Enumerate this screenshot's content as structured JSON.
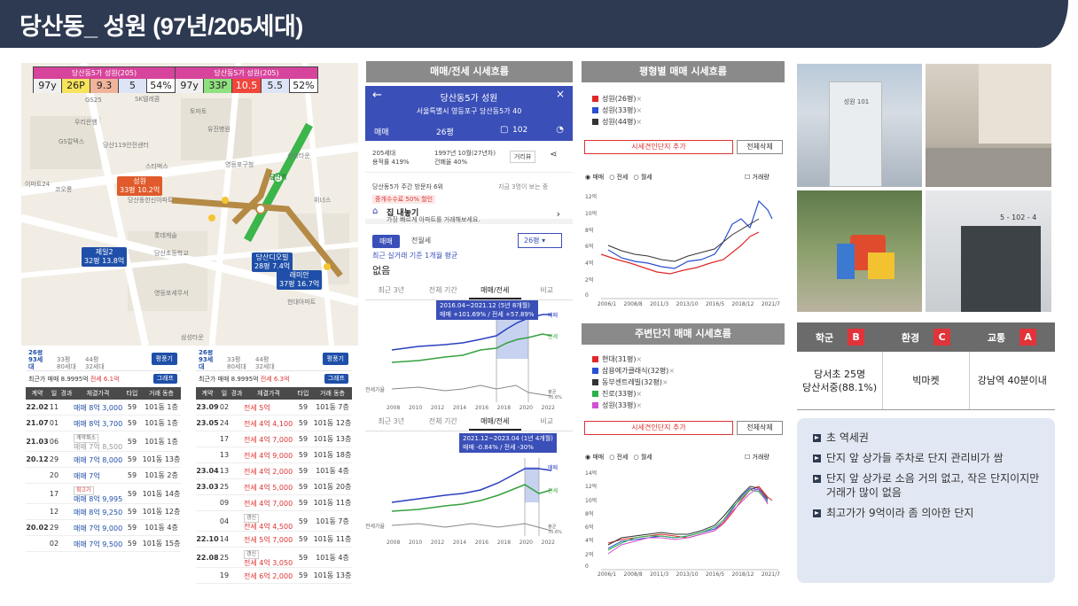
{
  "title": "당산동_ 성원 (97년/205세대)",
  "map": {
    "compare": [
      {
        "header": "당산동5가 성원(205)",
        "cells": [
          "97y",
          "26P",
          "9.3",
          "5",
          "54%"
        ]
      },
      {
        "header": "당산동5가 성원(205)",
        "cells": [
          "97y",
          "33P",
          "10.5",
          "5.5",
          "52%"
        ]
      }
    ],
    "markers": [
      {
        "name": "성원",
        "sub": "33평 10.2억"
      },
      {
        "name": "당산디오빌",
        "sub": "28평 7.4억"
      },
      {
        "name": "래미안",
        "sub": "37평 16.7억"
      },
      {
        "name": "제일2",
        "sub": "32평 13.8억"
      }
    ],
    "labels": [
      "GS25",
      "SK텔레콤",
      "우리은행",
      "GS칼텍스",
      "당산119안전센터",
      "스타벅스",
      "이마트24",
      "코오롱",
      "유진병원",
      "당산역",
      "토마토",
      "영등포구청",
      "삼성타운",
      "위너스",
      "당산동한신아파트",
      "롯데캐슬",
      "당산초등학교",
      "현대아파트",
      "영등포세무서",
      "삼성타운"
    ],
    "station": "당산역"
  },
  "trades_left": {
    "tabs": [
      "26평 93세대",
      "33평 80세대",
      "44평 32세대"
    ],
    "button": "평풍기",
    "avg": "최근가 매매 8.9995억",
    "avg_rent": "전세 6.1억",
    "graph_btn": "그래프",
    "columns": [
      "계약",
      "일",
      "경과",
      "체결가격",
      "타입",
      "거래 동층"
    ],
    "rows": [
      {
        "ym": "22.02",
        "d": "11",
        "note": "",
        "price": "매매 8억 3,000",
        "type": "59",
        "dong": "101동 1층"
      },
      {
        "ym": "21.07",
        "d": "01",
        "note": "",
        "price": "매매 8억 3,700",
        "type": "59",
        "dong": "101동 1층"
      },
      {
        "ym": "21.03",
        "d": "06",
        "note": "계약취소",
        "price": "매매 7억 8,500",
        "type": "59",
        "dong": "101동 1층"
      },
      {
        "ym": "20.12",
        "d": "29",
        "note": "",
        "price": "매매 7억 8,000",
        "type": "59",
        "dong": "101동 13층"
      },
      {
        "ym": "",
        "d": "20",
        "note": "",
        "price": "매매 7억",
        "type": "59",
        "dong": "101동 2층"
      },
      {
        "ym": "",
        "d": "17",
        "note": "최고가",
        "price": "매매 8억 9,995",
        "type": "59",
        "dong": "101동 14층"
      },
      {
        "ym": "",
        "d": "12",
        "note": "",
        "price": "매매 8억 9,250",
        "type": "59",
        "dong": "101동 12층"
      },
      {
        "ym": "20.02",
        "d": "29",
        "note": "",
        "price": "매매 7억 9,000",
        "type": "59",
        "dong": "101동 4층"
      },
      {
        "ym": "",
        "d": "02",
        "note": "",
        "price": "매매 7억 9,500",
        "type": "59",
        "dong": "101동 15층"
      }
    ]
  },
  "trades_right": {
    "tabs": [
      "26평 93세대",
      "33평 80세대",
      "44평 32세대"
    ],
    "button": "평풍기",
    "avg": "최근가 매매 8.9995억",
    "avg_rent": "전세 6.3억",
    "graph_btn": "그래프",
    "columns": [
      "계약",
      "일",
      "경과",
      "체결가격",
      "타입",
      "거래 동층"
    ],
    "rows": [
      {
        "ym": "23.09",
        "d": "02",
        "note": "",
        "price": "전세 5억",
        "type": "59",
        "dong": "101동 7층"
      },
      {
        "ym": "23.05",
        "d": "24",
        "note": "",
        "price": "전세 4억 4,100",
        "type": "59",
        "dong": "101동 12층"
      },
      {
        "ym": "",
        "d": "17",
        "note": "",
        "price": "전세 4억 7,000",
        "type": "59",
        "dong": "101동 13층"
      },
      {
        "ym": "",
        "d": "13",
        "note": "",
        "price": "전세 4억 9,000",
        "type": "59",
        "dong": "101동 18층"
      },
      {
        "ym": "23.04",
        "d": "13",
        "note": "",
        "price": "전세 4억 2,000",
        "type": "59",
        "dong": "101동 4층"
      },
      {
        "ym": "23.03",
        "d": "25",
        "note": "",
        "price": "전세 4억 5,000",
        "type": "59",
        "dong": "101동 20층"
      },
      {
        "ym": "",
        "d": "09",
        "note": "",
        "price": "전세 4억 7,000",
        "type": "59",
        "dong": "101동 11층"
      },
      {
        "ym": "",
        "d": "04",
        "note": "갱신",
        "price": "전세 4억 4,500",
        "type": "59",
        "dong": "101동 7층"
      },
      {
        "ym": "22.10",
        "d": "14",
        "note": "",
        "price": "전세 5억 7,000",
        "type": "59",
        "dong": "101동 11층"
      },
      {
        "ym": "22.08",
        "d": "25",
        "note": "갱신",
        "price": "전세 4억 3,050",
        "type": "59",
        "dong": "101동 4층"
      },
      {
        "ym": "",
        "d": "19",
        "note": "",
        "price": "전세 6억 2,000",
        "type": "59",
        "dong": "101동 13층"
      }
    ]
  },
  "col2": {
    "header": "매매/전세 시세흐름",
    "app_title": "당산동5가 성원",
    "address": "서울특별시 영등포구 당산동5가 40",
    "filter1": "매매",
    "filter2": "26평",
    "comment_count": "102",
    "info1a": "205세대",
    "info1b": "용적률 419%",
    "info2a": "1997년 10월(27년차)",
    "info2b": "건폐율 40%",
    "road_btn": "거리뷰",
    "visitors": "당산동5가 주간 방문자 6위",
    "visitors_right": "지금 3명이 보는 중",
    "promo": "중개수수료 50% 할인",
    "sell_title": "집 내놓기",
    "sell_sub": "가장 빠르게 아파트를 거래해보세요.",
    "tab_a": "매매",
    "tab_b": "전월세",
    "size_select": "26평",
    "recent_label": "최근 실거래 기준 1개월 평균",
    "recent_value": "없음",
    "period_tabs": [
      "최근 3년",
      "전체 기간",
      "매매/전세",
      "비교"
    ],
    "callout1_l1": "2016.04~2021.12 (5년 8개월)",
    "callout1_l2": "매매 +101.69% / 전세 +57.89%",
    "callout2_l1": "2021.12~2023.04 (1년 4개월)",
    "callout2_l2": "매매 -0.84% / 전세 -30%",
    "axis_years": [
      "2008",
      "2010",
      "2012",
      "2014",
      "2016",
      "2018",
      "2020",
      "2022"
    ],
    "series_labels": [
      "매매",
      "전세"
    ],
    "ratio_label": "전세가율",
    "ratio_value": "평균 70.6%"
  },
  "col3": {
    "header1": "평형별 매매 시세흐름",
    "legend1": [
      {
        "label": "성원(26평)",
        "color": "#e02828"
      },
      {
        "label": "성원(33평)",
        "color": "#2a4fd0"
      },
      {
        "label": "성원(44평)",
        "color": "#333333"
      }
    ],
    "add_btn": "시세견인단지 추가",
    "del_btn": "전체삭제",
    "radio": [
      "매매",
      "전세",
      "월세"
    ],
    "checkbox": "거래량",
    "y_ticks1": [
      "12억",
      "10억",
      "8억",
      "6억",
      "4억",
      "2억",
      "0"
    ],
    "x_ticks": [
      "2006/1",
      "2008/8",
      "2011/3",
      "2013/10",
      "2016/5",
      "2018/12",
      "2021/7"
    ],
    "header2": "주변단지 매매 시세흐름",
    "legend2": [
      {
        "label": "현대(31평)",
        "color": "#e02828"
      },
      {
        "label": "삼용에가클래식(32평)",
        "color": "#2a4fd0"
      },
      {
        "label": "동부센트레빌(32평)",
        "color": "#333333"
      },
      {
        "label": "진로(33평)",
        "color": "#2bb04a"
      },
      {
        "label": "성원(33평)",
        "color": "#d24fd2"
      }
    ],
    "y_ticks2": [
      "14억",
      "12억",
      "10억",
      "8억",
      "6억",
      "4억",
      "2억",
      "0"
    ]
  },
  "info": {
    "headers": [
      {
        "label": "학군",
        "badge": "B",
        "color": "#e0343a"
      },
      {
        "label": "환경",
        "badge": "C",
        "color": "#e0343a"
      },
      {
        "label": "교통",
        "badge": "A",
        "color": "#e0343a"
      }
    ],
    "school": "당서초  25명\n당산서중(88.1%)",
    "env": "빅마켓",
    "traffic": "강남역  40분이내"
  },
  "notes": [
    "초 역세권",
    "단지 앞 상가들 주차로 단지 관리비가 쌈",
    "단지 앞 상가로 소음 거의 없고, 작은 단지이지만 거래가 많이 없음",
    "최고가가 9억이라 좀 의아한 단지"
  ],
  "photos": {
    "sign": "성원 101",
    "door": "5 - 102 - 4"
  }
}
